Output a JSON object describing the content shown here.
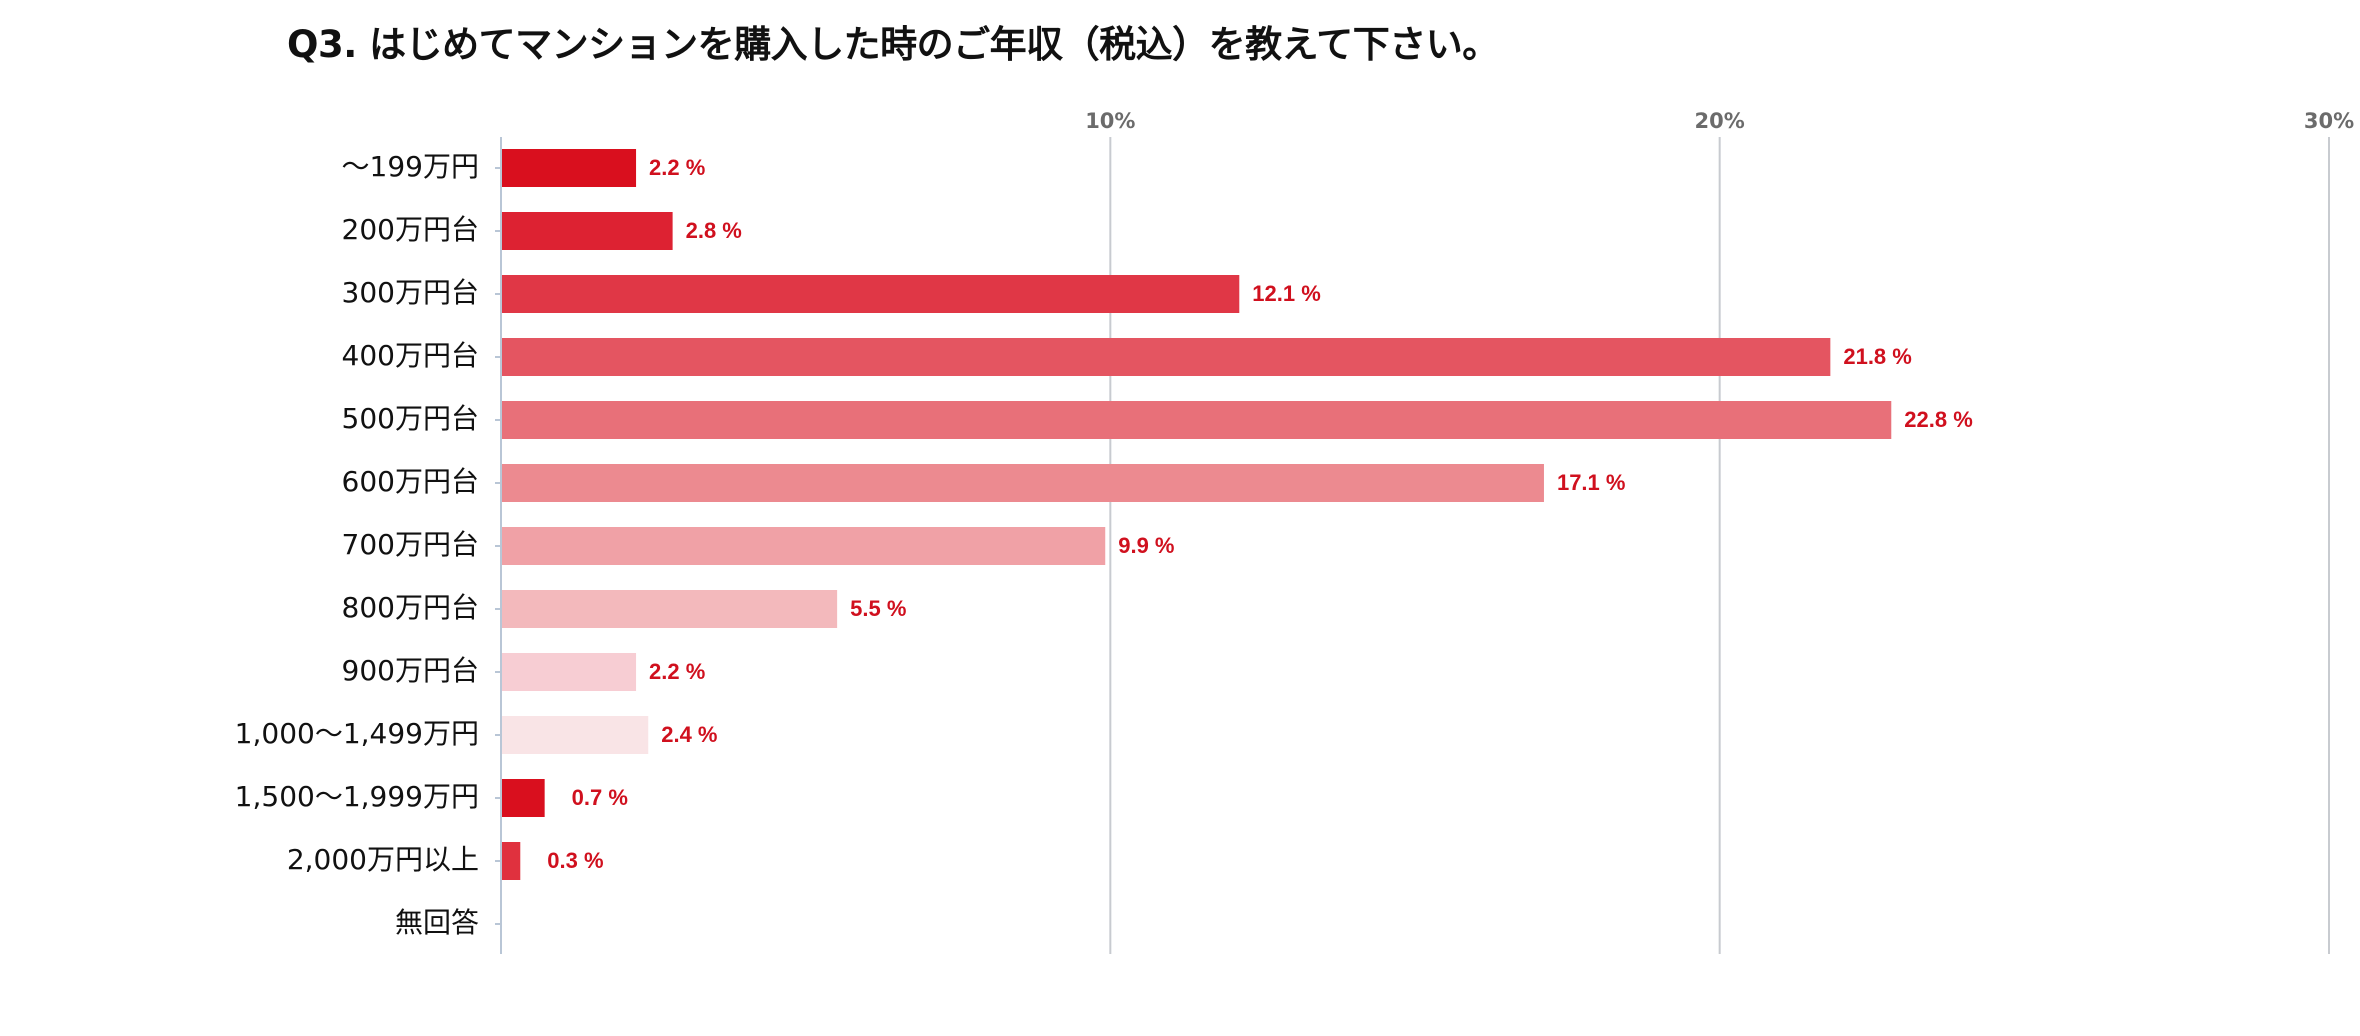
{
  "chart_data": {
    "type": "bar",
    "orientation": "horizontal",
    "title": "Q3. はじめてマンションを購入した時のご年収（税込）を教えて下さい。",
    "categories": [
      "～199万円",
      "200万円台",
      "300万円台",
      "400万円台",
      "500万円台",
      "600万円台",
      "700万円台",
      "800万円台",
      "900万円台",
      "1,000～1,499万円",
      "1,500～1,999万円",
      "2,000万円以上",
      "無回答"
    ],
    "values": [
      2.2,
      2.8,
      12.1,
      21.8,
      22.8,
      17.1,
      9.9,
      5.5,
      2.2,
      2.4,
      0.7,
      0.3,
      null
    ],
    "value_labels": [
      "2.2 %",
      "2.8 %",
      "12.1 %",
      "21.8 %",
      "22.8 %",
      "17.1 %",
      "9.9 %",
      "5.5 %",
      "2.2 %",
      "2.4 %",
      "0.7 %",
      "0.3 %",
      ""
    ],
    "xlim": [
      0,
      30
    ],
    "x_ticks": [
      10,
      20,
      30
    ],
    "x_tick_labels": [
      "10%",
      "20%",
      "30%"
    ],
    "xlabel": "",
    "ylabel": "",
    "grid": true,
    "legend": "none",
    "bar_colors": [
      "#d90f1e",
      "#dd2232",
      "#e03746",
      "#e45561",
      "#e87079",
      "#ec8a90",
      "#f0a1a6",
      "#f3b9bc",
      "#f7cdd3",
      "#f9e4e6",
      "#d90f1e",
      "#e0313e",
      null
    ],
    "value_label_color": "#d0101e",
    "gridline_color": "#c8cbd0"
  }
}
